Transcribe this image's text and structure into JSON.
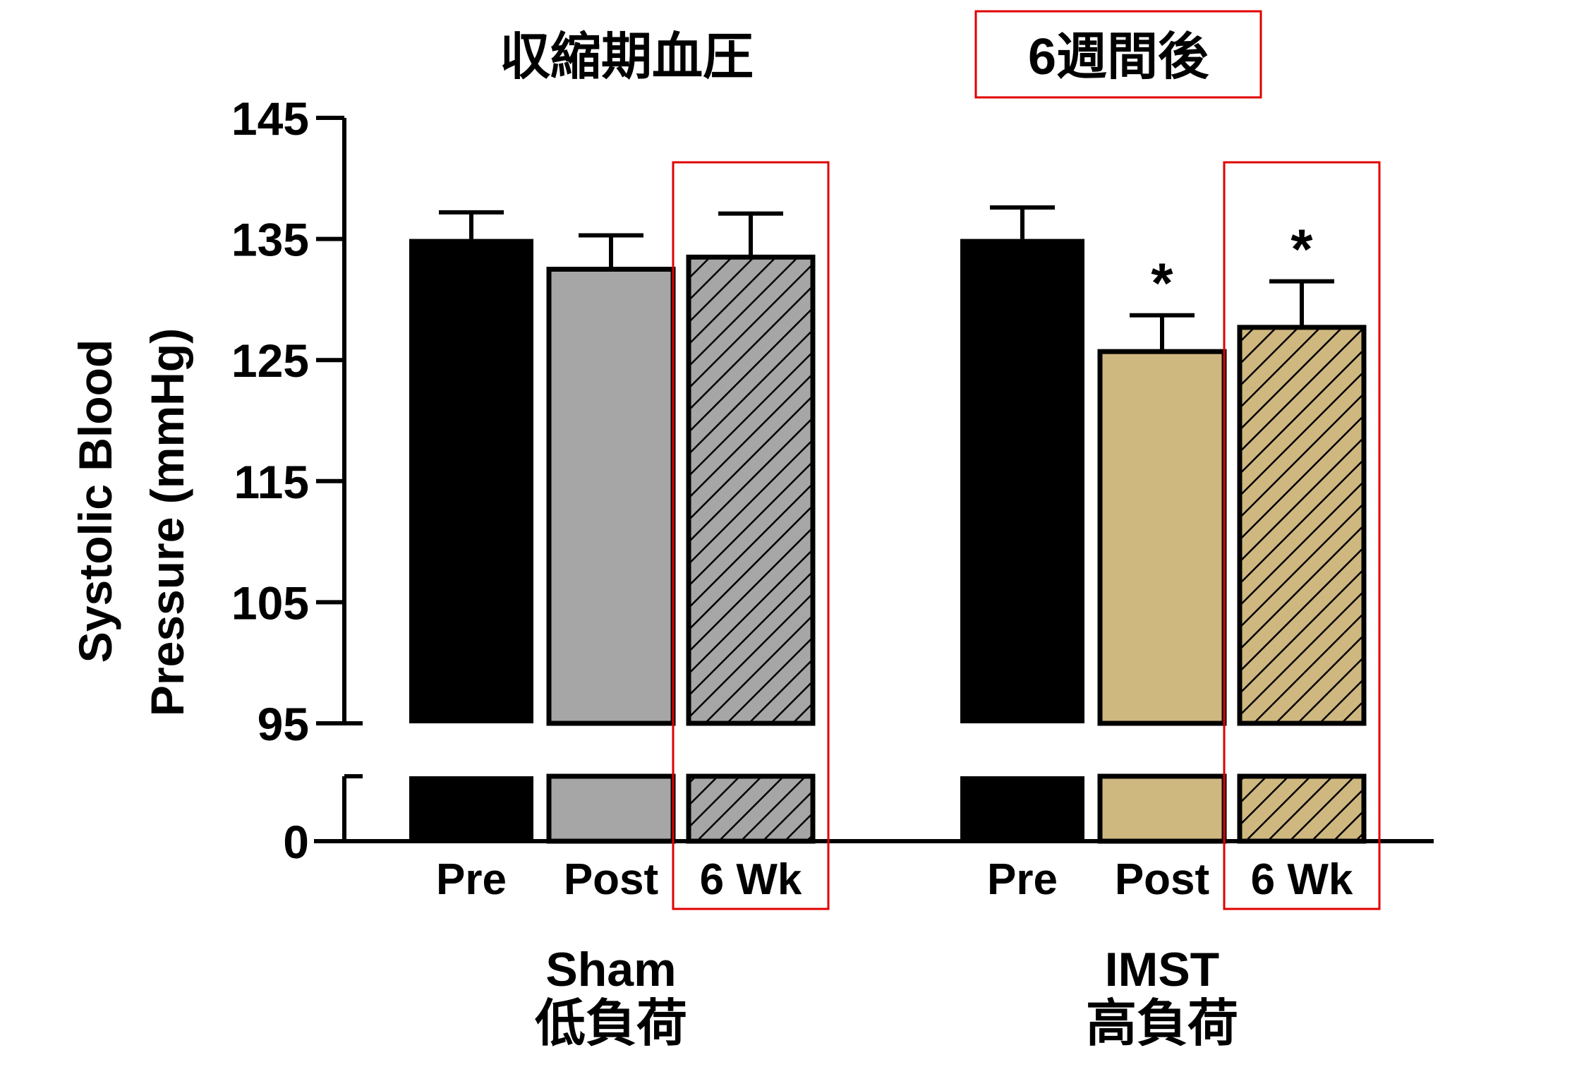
{
  "chart_data": {
    "type": "bar",
    "title": "収縮期血圧",
    "annotation_box": "6週間後",
    "ylabel_lines": [
      "Systolic Blood",
      "Pressure (mmHg)"
    ],
    "y_ticks_upper": [
      95,
      105,
      115,
      125,
      135,
      145
    ],
    "y_tick_lower": 0,
    "y_axis_break": true,
    "ylim_upper": [
      95,
      145
    ],
    "grid": false,
    "legend": "none",
    "groups": [
      {
        "name": "Sham",
        "subtitle": "低負荷",
        "bars": [
          {
            "label": "Pre",
            "value": 135.0,
            "error": 2.2,
            "fill": "#000000",
            "hatched": false,
            "highlighted": false,
            "significant": false
          },
          {
            "label": "Post",
            "value": 132.5,
            "error": 2.8,
            "fill": "#a6a6a6",
            "hatched": false,
            "highlighted": false,
            "significant": false
          },
          {
            "label": "6 Wk",
            "value": 133.5,
            "error": 3.6,
            "fill": "#a6a6a6",
            "hatched": true,
            "highlighted": true,
            "significant": false
          }
        ]
      },
      {
        "name": "IMST",
        "subtitle": "高負荷",
        "bars": [
          {
            "label": "Pre",
            "value": 135.0,
            "error": 2.6,
            "fill": "#000000",
            "hatched": false,
            "highlighted": false,
            "significant": false
          },
          {
            "label": "Post",
            "value": 125.7,
            "error": 3.0,
            "fill": "#cfb87f",
            "hatched": false,
            "highlighted": false,
            "significant": true
          },
          {
            "label": "6 Wk",
            "value": 127.7,
            "error": 3.8,
            "fill": "#cfb87f",
            "hatched": true,
            "highlighted": true,
            "significant": true
          }
        ]
      }
    ],
    "significance_marker": "*",
    "highlight_color": "#e00000"
  }
}
